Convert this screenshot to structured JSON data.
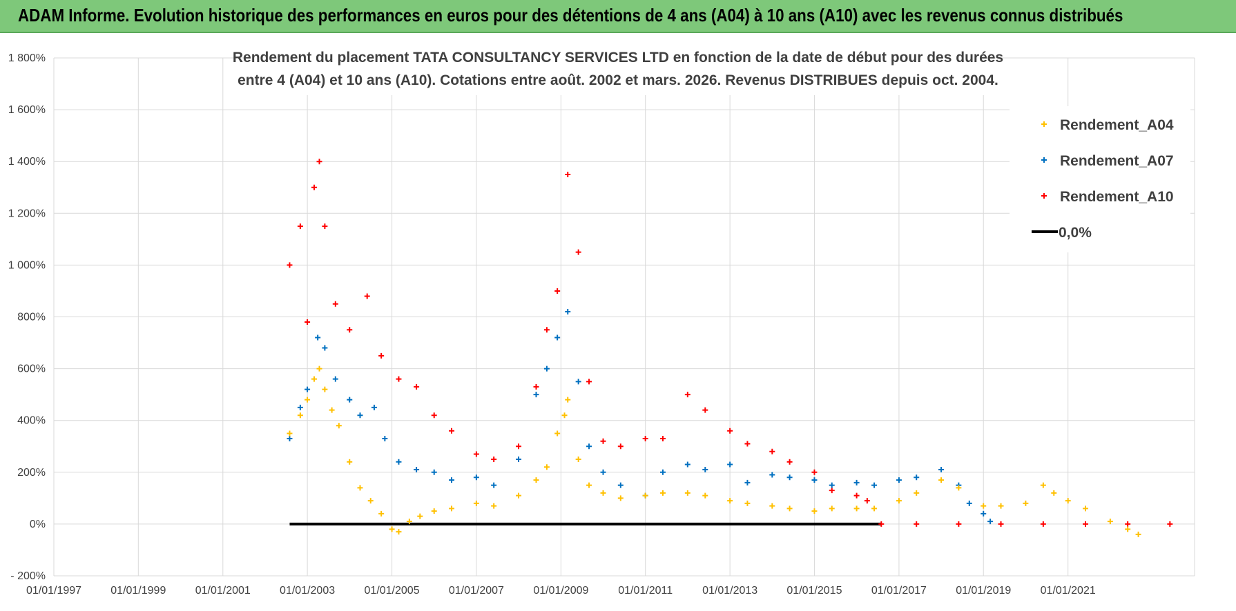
{
  "header": {
    "title": "ADAM Informe. Evolution historique des performances en euros pour des détentions de 4 ans (A04) à 10 ans (A10) avec les revenus connus distribués"
  },
  "chart_data": {
    "type": "scatter",
    "title_lines": [
      "Rendement du placement TATA  CONSULTANCY SERVICES LTD en fonction de la date de début pour des durées",
      "entre 4 (A04) et 10 ans (A10).  Cotations entre août. 2002 et mars. 2026.  Revenus DISTRIBUES depuis oct. 2004."
    ],
    "xlabel": "",
    "ylabel": "",
    "x_range": [
      "1997-01-01",
      "2023-12-31"
    ],
    "ylim": [
      -200,
      1800
    ],
    "y_ticks": [
      -200,
      0,
      200,
      400,
      600,
      800,
      1000,
      1200,
      1400,
      1600,
      1800
    ],
    "y_tick_labels": [
      "- 200%",
      "0%",
      "200%",
      "400%",
      "600%",
      "800%",
      "1 000%",
      "1 200%",
      "1 400%",
      "1 600%",
      "1 800%"
    ],
    "x_ticks": [
      "1997-01-01",
      "1999-01-01",
      "2001-01-01",
      "2003-01-01",
      "2005-01-01",
      "2007-01-01",
      "2009-01-01",
      "2011-01-01",
      "2013-01-01",
      "2015-01-01",
      "2017-01-01",
      "2019-01-01",
      "2021-01-01"
    ],
    "x_tick_labels": [
      "01/01/1997",
      "01/01/1999",
      "01/01/2001",
      "01/01/2003",
      "01/01/2005",
      "01/01/2007",
      "01/01/2009",
      "01/01/2011",
      "01/01/2013",
      "01/01/2015",
      "01/01/2017",
      "01/01/2019",
      "01/01/2021"
    ],
    "grid": true,
    "legend_position": "top-right",
    "series": [
      {
        "name": "Rendement_A04",
        "color": "#ffc000",
        "marker": "plus",
        "points": [
          [
            "2002-08-01",
            350
          ],
          [
            "2002-11-01",
            420
          ],
          [
            "2003-01-01",
            480
          ],
          [
            "2003-03-01",
            560
          ],
          [
            "2003-04-15",
            600
          ],
          [
            "2003-06-01",
            520
          ],
          [
            "2003-08-01",
            440
          ],
          [
            "2003-10-01",
            380
          ],
          [
            "2004-01-01",
            240
          ],
          [
            "2004-04-01",
            140
          ],
          [
            "2004-07-01",
            90
          ],
          [
            "2004-10-01",
            40
          ],
          [
            "2005-01-01",
            -20
          ],
          [
            "2005-03-01",
            -30
          ],
          [
            "2005-06-01",
            10
          ],
          [
            "2005-09-01",
            30
          ],
          [
            "2006-01-01",
            50
          ],
          [
            "2006-06-01",
            60
          ],
          [
            "2007-01-01",
            80
          ],
          [
            "2007-06-01",
            70
          ],
          [
            "2008-01-01",
            110
          ],
          [
            "2008-06-01",
            170
          ],
          [
            "2008-09-01",
            220
          ],
          [
            "2008-12-01",
            350
          ],
          [
            "2009-02-01",
            420
          ],
          [
            "2009-03-01",
            480
          ],
          [
            "2009-06-01",
            250
          ],
          [
            "2009-09-01",
            150
          ],
          [
            "2010-01-01",
            120
          ],
          [
            "2010-06-01",
            100
          ],
          [
            "2011-01-01",
            110
          ],
          [
            "2011-06-01",
            120
          ],
          [
            "2012-01-01",
            120
          ],
          [
            "2012-06-01",
            110
          ],
          [
            "2013-01-01",
            90
          ],
          [
            "2013-06-01",
            80
          ],
          [
            "2014-01-01",
            70
          ],
          [
            "2014-06-01",
            60
          ],
          [
            "2015-01-01",
            50
          ],
          [
            "2015-06-01",
            60
          ],
          [
            "2016-01-01",
            60
          ],
          [
            "2016-06-01",
            60
          ],
          [
            "2017-01-01",
            90
          ],
          [
            "2017-06-01",
            120
          ],
          [
            "2018-01-01",
            170
          ],
          [
            "2018-06-01",
            140
          ],
          [
            "2019-01-01",
            70
          ],
          [
            "2019-06-01",
            70
          ],
          [
            "2020-01-01",
            80
          ],
          [
            "2020-06-01",
            150
          ],
          [
            "2020-09-01",
            120
          ],
          [
            "2021-01-01",
            90
          ],
          [
            "2021-06-01",
            60
          ],
          [
            "2022-01-01",
            10
          ],
          [
            "2022-06-01",
            -20
          ],
          [
            "2022-09-01",
            -40
          ]
        ]
      },
      {
        "name": "Rendement_A07",
        "color": "#0070c0",
        "marker": "plus",
        "points": [
          [
            "2002-08-01",
            330
          ],
          [
            "2002-11-01",
            450
          ],
          [
            "2003-01-01",
            520
          ],
          [
            "2003-04-01",
            720
          ],
          [
            "2003-06-01",
            680
          ],
          [
            "2003-09-01",
            560
          ],
          [
            "2004-01-01",
            480
          ],
          [
            "2004-04-01",
            420
          ],
          [
            "2004-08-01",
            450
          ],
          [
            "2004-11-01",
            330
          ],
          [
            "2005-03-01",
            240
          ],
          [
            "2005-08-01",
            210
          ],
          [
            "2006-01-01",
            200
          ],
          [
            "2006-06-01",
            170
          ],
          [
            "2007-01-01",
            180
          ],
          [
            "2007-06-01",
            150
          ],
          [
            "2008-01-01",
            250
          ],
          [
            "2008-06-01",
            500
          ],
          [
            "2008-09-01",
            600
          ],
          [
            "2008-12-01",
            720
          ],
          [
            "2009-03-01",
            820
          ],
          [
            "2009-06-01",
            550
          ],
          [
            "2009-09-01",
            300
          ],
          [
            "2010-01-01",
            200
          ],
          [
            "2010-06-01",
            150
          ],
          [
            "2011-01-01",
            110
          ],
          [
            "2011-06-01",
            200
          ],
          [
            "2012-01-01",
            230
          ],
          [
            "2012-06-01",
            210
          ],
          [
            "2013-01-01",
            230
          ],
          [
            "2013-06-01",
            160
          ],
          [
            "2014-01-01",
            190
          ],
          [
            "2014-06-01",
            180
          ],
          [
            "2015-01-01",
            170
          ],
          [
            "2015-06-01",
            150
          ],
          [
            "2016-01-01",
            160
          ],
          [
            "2016-06-01",
            150
          ],
          [
            "2017-01-01",
            170
          ],
          [
            "2017-06-01",
            180
          ],
          [
            "2018-01-01",
            210
          ],
          [
            "2018-06-01",
            150
          ],
          [
            "2018-09-01",
            80
          ],
          [
            "2019-01-01",
            40
          ],
          [
            "2019-03-01",
            10
          ]
        ]
      },
      {
        "name": "Rendement_A10",
        "color": "#ff0000",
        "marker": "plus",
        "points": [
          [
            "2002-08-01",
            1000
          ],
          [
            "2002-11-01",
            1150
          ],
          [
            "2003-01-01",
            780
          ],
          [
            "2003-03-01",
            1300
          ],
          [
            "2003-04-15",
            1400
          ],
          [
            "2003-06-01",
            1150
          ],
          [
            "2003-09-01",
            850
          ],
          [
            "2004-01-01",
            750
          ],
          [
            "2004-06-01",
            880
          ],
          [
            "2004-10-01",
            650
          ],
          [
            "2005-03-01",
            560
          ],
          [
            "2005-08-01",
            530
          ],
          [
            "2006-01-01",
            420
          ],
          [
            "2006-06-01",
            360
          ],
          [
            "2007-01-01",
            270
          ],
          [
            "2007-06-01",
            250
          ],
          [
            "2008-01-01",
            300
          ],
          [
            "2008-06-01",
            530
          ],
          [
            "2008-09-01",
            750
          ],
          [
            "2008-12-01",
            900
          ],
          [
            "2009-03-01",
            1350
          ],
          [
            "2009-06-01",
            1050
          ],
          [
            "2009-09-01",
            550
          ],
          [
            "2010-01-01",
            320
          ],
          [
            "2010-06-01",
            300
          ],
          [
            "2011-01-01",
            330
          ],
          [
            "2011-06-01",
            330
          ],
          [
            "2012-01-01",
            500
          ],
          [
            "2012-06-01",
            440
          ],
          [
            "2013-01-01",
            360
          ],
          [
            "2013-06-01",
            310
          ],
          [
            "2014-01-01",
            280
          ],
          [
            "2014-06-01",
            240
          ],
          [
            "2015-01-01",
            200
          ],
          [
            "2015-06-01",
            130
          ],
          [
            "2016-01-01",
            110
          ],
          [
            "2016-04-01",
            90
          ],
          [
            "2016-08-01",
            0
          ],
          [
            "2017-06-01",
            0
          ],
          [
            "2018-06-01",
            0
          ],
          [
            "2019-06-01",
            0
          ],
          [
            "2020-06-01",
            0
          ],
          [
            "2021-06-01",
            0
          ],
          [
            "2022-06-01",
            0
          ],
          [
            "2023-06-01",
            0
          ]
        ]
      },
      {
        "name": "0,0%",
        "color": "#000000",
        "marker": "line",
        "points": [
          [
            "2002-08-01",
            0
          ],
          [
            "2016-08-01",
            0
          ]
        ]
      }
    ]
  }
}
